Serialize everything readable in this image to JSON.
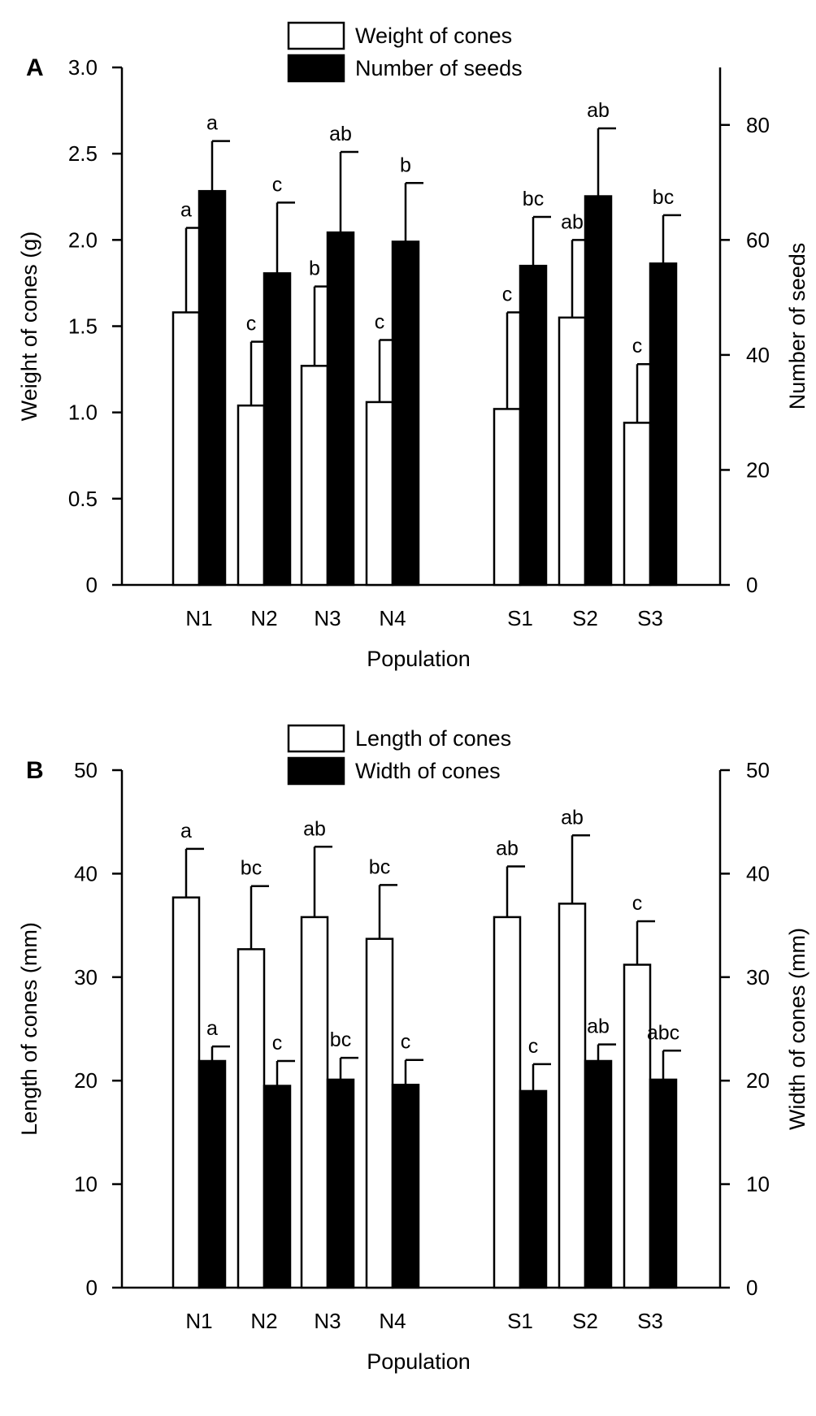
{
  "chart_data": [
    {
      "type": "bar",
      "panel_label": "A",
      "categories": [
        "N1",
        "N2",
        "N3",
        "N4",
        "S1",
        "S2",
        "S3"
      ],
      "xlabel": "Population",
      "ylabel_left": "Weight of cones (g)",
      "ylabel_right": "Number of seeds",
      "ylim_left": [
        0,
        3.0
      ],
      "ylim_right": [
        0,
        90
      ],
      "yticks_left": [
        "0",
        "0.5",
        "1.0",
        "1.5",
        "2.0",
        "2.5",
        "3.0"
      ],
      "yticks_right": [
        "0",
        "20",
        "40",
        "60",
        "80"
      ],
      "legend": [
        "Weight of cones",
        "Number of seeds"
      ],
      "legend_position": "top-center",
      "series": [
        {
          "name": "Weight of cones",
          "axis": "left",
          "fill": "#ffffff",
          "values": [
            1.58,
            1.04,
            1.27,
            1.06,
            1.02,
            1.55,
            0.94
          ],
          "errors": [
            0.49,
            0.37,
            0.46,
            0.36,
            0.56,
            0.45,
            0.34
          ],
          "letters": [
            "a",
            "c",
            "b",
            "c",
            "c",
            "ab",
            "c"
          ]
        },
        {
          "name": "Number of seeds",
          "axis": "right",
          "fill": "#000000",
          "values": [
            68.5,
            54.2,
            61.3,
            59.7,
            55.5,
            67.6,
            55.9
          ],
          "errors": [
            8.7,
            12.3,
            14.0,
            10.2,
            8.5,
            11.8,
            8.4
          ],
          "letters": [
            "a",
            "c",
            "ab",
            "b",
            "bc",
            "ab",
            "bc"
          ]
        }
      ]
    },
    {
      "type": "bar",
      "panel_label": "B",
      "categories": [
        "N1",
        "N2",
        "N3",
        "N4",
        "S1",
        "S2",
        "S3"
      ],
      "xlabel": "Population",
      "ylabel_left": "Length of cones (mm)",
      "ylabel_right": "Width of cones (mm)",
      "ylim_left": [
        0,
        50
      ],
      "ylim_right": [
        0,
        50
      ],
      "yticks_left": [
        "0",
        "10",
        "20",
        "30",
        "40",
        "50"
      ],
      "yticks_right": [
        "0",
        "10",
        "20",
        "30",
        "40",
        "50"
      ],
      "legend": [
        "Length of cones",
        "Width of cones"
      ],
      "legend_position": "top-center",
      "series": [
        {
          "name": "Length of cones",
          "axis": "left",
          "fill": "#ffffff",
          "values": [
            37.7,
            32.7,
            35.8,
            33.7,
            35.8,
            37.1,
            31.2
          ],
          "errors": [
            4.7,
            6.1,
            6.8,
            5.2,
            4.9,
            6.6,
            4.2
          ],
          "letters": [
            "a",
            "bc",
            "ab",
            "bc",
            "ab",
            "ab",
            "c"
          ]
        },
        {
          "name": "Width of cones",
          "axis": "right",
          "fill": "#000000",
          "values": [
            21.9,
            19.5,
            20.1,
            19.6,
            19.0,
            21.9,
            20.1
          ],
          "errors": [
            1.4,
            2.4,
            2.1,
            2.4,
            2.6,
            1.6,
            2.8
          ],
          "letters": [
            "a",
            "c",
            "bc",
            "c",
            "c",
            "ab",
            "abc"
          ]
        }
      ]
    }
  ]
}
